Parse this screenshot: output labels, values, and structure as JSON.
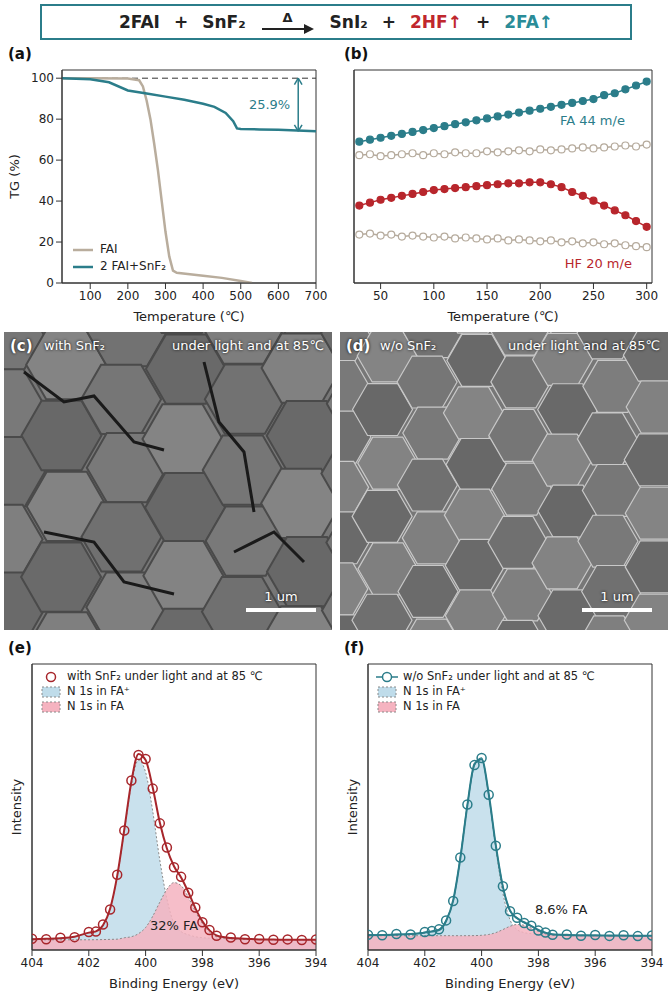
{
  "header": {
    "equation": [
      {
        "text": "2FAI"
      },
      {
        "text": "+"
      },
      {
        "text": "SnF₂"
      },
      {
        "text": "Δ",
        "arrow": true
      },
      {
        "text": "SnI₂"
      },
      {
        "text": "+"
      },
      {
        "text": "2HF↑",
        "color": "#c0272d"
      },
      {
        "text": "+"
      },
      {
        "text": "2FA↑",
        "color": "#2a8c98"
      }
    ]
  },
  "chart_data": [
    {
      "type": "line",
      "panel": "(a)",
      "xlabel": "Temperature (℃)",
      "ylabel": "TG (%)",
      "xlim": [
        25,
        700
      ],
      "xticks": [
        100,
        200,
        300,
        400,
        500,
        600,
        700
      ],
      "ylim": [
        0,
        104
      ],
      "yticks": [
        0,
        20,
        40,
        60,
        80,
        100
      ],
      "legend": "lower left",
      "series": [
        {
          "name": "FAI",
          "color": "#b9ad9d",
          "x": [
            25,
            100,
            200,
            230,
            240,
            250,
            260,
            270,
            280,
            290,
            300,
            310,
            320,
            330,
            400,
            450,
            500,
            530
          ],
          "values": [
            100,
            100,
            99.8,
            99,
            96,
            89,
            80,
            68,
            55,
            40,
            25,
            13,
            6,
            5,
            3.5,
            2.5,
            1,
            0
          ]
        },
        {
          "name": "2 FAI+SnF₂",
          "color": "#2b7d8a",
          "x": [
            25,
            100,
            150,
            200,
            250,
            300,
            350,
            400,
            430,
            460,
            480,
            490,
            500,
            550,
            600,
            650,
            700
          ],
          "values": [
            100,
            99.5,
            98,
            94,
            92.5,
            91,
            89.5,
            87.5,
            86,
            83,
            79,
            75.5,
            75.2,
            75,
            74.8,
            74.5,
            74.1
          ]
        }
      ],
      "reference_line": {
        "y": 100,
        "line_style": "dashed"
      },
      "annotations": [
        {
          "text": "25.9%",
          "y_from": 100,
          "y_to": 74.1,
          "color": "#2b7d8a"
        }
      ]
    },
    {
      "type": "line",
      "panel": "(b)",
      "xlabel": "Temperature (℃)",
      "xlim": [
        25,
        305
      ],
      "xticks": [
        50,
        100,
        150,
        200,
        250,
        300
      ],
      "ylim": [
        0,
        110
      ],
      "yticks": [],
      "tick_labels": "x",
      "x": [
        30,
        40,
        50,
        60,
        70,
        80,
        90,
        100,
        110,
        120,
        130,
        140,
        150,
        160,
        170,
        180,
        190,
        200,
        210,
        220,
        230,
        240,
        250,
        260,
        270,
        280,
        290,
        300
      ],
      "series": [
        {
          "name": "FA 44 m/e",
          "color": "#2b7d8a",
          "marker": "circle",
          "values": [
            73,
            74,
            75,
            76,
            77,
            78,
            79,
            80,
            81,
            82,
            83,
            84,
            85,
            86,
            87,
            88,
            89,
            90,
            91,
            92,
            93,
            94,
            95,
            97,
            98,
            100,
            102,
            104
          ]
        },
        {
          "color": "#b5aa9c",
          "marker": "open_circle",
          "values": [
            66,
            66.5,
            65.5,
            66,
            66.5,
            67,
            66,
            67,
            66.5,
            67.5,
            67,
            67,
            68,
            67.5,
            68,
            68.5,
            68,
            69,
            68.5,
            69,
            69.5,
            70,
            69.5,
            70,
            70.5,
            71,
            70.5,
            71.5
          ]
        },
        {
          "name": "HF 20 m/e",
          "color": "#b8262c",
          "marker": "circle",
          "values": [
            40,
            41.5,
            43,
            44,
            45,
            46,
            47,
            48,
            48.5,
            49,
            49.5,
            50,
            50.5,
            51,
            51.5,
            51.5,
            52,
            52,
            51,
            49.5,
            47,
            45,
            42.5,
            40,
            37.5,
            35,
            32,
            29
          ]
        },
        {
          "color": "#b5aa9c",
          "marker": "open_circle",
          "values": [
            25,
            25.5,
            24.5,
            25,
            24,
            24.5,
            24,
            23.5,
            24,
            23,
            23.5,
            23,
            22.5,
            23,
            22,
            22.5,
            22,
            21.5,
            22,
            21,
            21.5,
            20.5,
            21,
            20,
            20.5,
            19.5,
            19,
            18.5
          ]
        }
      ]
    },
    {
      "type": "line",
      "panel": "(e)",
      "xlabel": "Binding Energy (eV)",
      "ylabel": "Intensity",
      "xlim": [
        404,
        394
      ],
      "xticks": [
        404,
        402,
        400,
        398,
        396,
        394
      ],
      "ylim": [
        0,
        140
      ],
      "yticks": [],
      "tick_labels": "x",
      "legend": "upper left",
      "x": [
        404,
        403.5,
        403,
        402.5,
        402,
        401.75,
        401.5,
        401.25,
        401,
        400.75,
        400.5,
        400.25,
        400,
        399.75,
        399.5,
        399.25,
        399,
        398.75,
        398.5,
        398.25,
        398,
        397.75,
        397.5,
        397,
        396.5,
        396,
        395.5,
        395,
        394.5,
        394
      ],
      "series": [
        {
          "name": "with SnF₂ under light and at 85 ℃",
          "color": "#a7262b",
          "marker": "open_circle",
          "line_style": "none",
          "values": [
            5.5,
            5.3,
            6,
            6.3,
            8.8,
            9,
            12.5,
            19.8,
            36.8,
            58.5,
            83,
            95.5,
            93.5,
            79,
            62,
            50.2,
            40.5,
            35.8,
            28,
            20.8,
            13.6,
            9.8,
            7,
            6.1,
            5.3,
            5.4,
            5,
            5.2,
            4.9,
            5.1
          ]
        },
        {
          "color": "#a7262b",
          "line_style": "solid",
          "values": [
            5.3,
            5.5,
            5.8,
            6.5,
            8.5,
            9.1,
            12.1,
            20.2,
            36.3,
            59,
            82.5,
            96,
            93,
            79.5,
            62.4,
            49.7,
            41,
            35.5,
            28.5,
            20.5,
            14,
            9.6,
            7.1,
            5.9,
            5.5,
            5.2,
            5.1,
            5,
            5,
            5
          ]
        },
        {
          "name": "N 1s in FA⁺",
          "type": "area",
          "color": "#bfdcea",
          "values": [
            5.3,
            5.5,
            5.8,
            6.5,
            8.5,
            9,
            12,
            20,
            36,
            58,
            81,
            93,
            87,
            68,
            44,
            25,
            13,
            9,
            7.5,
            6.5,
            6,
            5.8,
            5.6,
            5.4,
            5.3,
            5.2,
            5.1,
            5,
            5,
            5
          ]
        },
        {
          "name": "N 1s in FA",
          "type": "area",
          "color": "#f5b3c0",
          "values": [
            5,
            5,
            5,
            5,
            5,
            5.05,
            5.1,
            5.2,
            5.3,
            6,
            6.5,
            8,
            11,
            16.5,
            23.4,
            29.7,
            33,
            31.5,
            26,
            19,
            13,
            8.8,
            6.5,
            5.5,
            5.2,
            5.1,
            5,
            5,
            5,
            5
          ]
        }
      ],
      "annotations": [
        {
          "text": "32% FA"
        }
      ]
    },
    {
      "type": "line",
      "panel": "(f)",
      "xlabel": "Binding Energy (eV)",
      "ylabel": "Intensity",
      "xlim": [
        404,
        394
      ],
      "xticks": [
        404,
        402,
        400,
        398,
        396,
        394
      ],
      "ylim": [
        0,
        140
      ],
      "yticks": [],
      "tick_labels": "x",
      "legend": "upper left",
      "x": [
        404,
        403.5,
        403,
        402.5,
        402,
        401.75,
        401.5,
        401.25,
        401,
        400.75,
        400.5,
        400.25,
        400,
        399.75,
        399.5,
        399.25,
        399,
        398.75,
        398.5,
        398.25,
        398,
        397.75,
        397.5,
        397,
        396.5,
        396,
        395.5,
        395,
        394.5,
        394
      ],
      "series": [
        {
          "name": "w/o SnF₂ under light and at 85 ℃",
          "color": "#2b7d8a",
          "marker": "open_circle",
          "line_style": "solid",
          "values": [
            7.5,
            7.2,
            7.8,
            7.6,
            8.8,
            9.3,
            10.1,
            14.5,
            24,
            45.3,
            71.2,
            90.5,
            94,
            76,
            51,
            31.2,
            19,
            15.8,
            13.2,
            11.9,
            9.5,
            8.6,
            7.5,
            7.6,
            7,
            7.3,
            6.9,
            7.2,
            6.8,
            7.1
          ]
        },
        {
          "color": "#2b7d8a",
          "line_style": "solid",
          "values": [
            7.2,
            7.3,
            7.5,
            7.8,
            8.5,
            9,
            9.7,
            14.2,
            24.4,
            44.8,
            70.9,
            91.1,
            93.4,
            76.5,
            51.3,
            30.8,
            19.4,
            15.5,
            13.6,
            11.7,
            9.8,
            8.4,
            7.7,
            7.35,
            7.2,
            7.1,
            7.1,
            7,
            7,
            7
          ]
        },
        {
          "name": "N 1s in FA⁺",
          "type": "area",
          "color": "#bfdcea",
          "values": [
            7.2,
            7.3,
            7.5,
            7.8,
            8.5,
            9,
            9.7,
            14.2,
            24.4,
            44.8,
            70.9,
            91,
            93.2,
            75.9,
            49.8,
            27.8,
            14.8,
            10,
            8.5,
            8,
            7.7,
            7.5,
            7.4,
            7.3,
            7.2,
            7.1,
            7.1,
            7,
            7,
            7
          ]
        },
        {
          "name": "N 1s in FA",
          "type": "area",
          "color": "#f5b3c0",
          "values": [
            7,
            7,
            7,
            7,
            7,
            7,
            7,
            7,
            7,
            7,
            7,
            7.05,
            7.2,
            7.6,
            8.5,
            10,
            11.6,
            12.5,
            12.1,
            10.7,
            9.1,
            7.9,
            7.3,
            7.05,
            7,
            7,
            7,
            7,
            7,
            7
          ]
        }
      ],
      "annotations": [
        {
          "text": "8.6% FA"
        }
      ]
    }
  ],
  "images": [
    {
      "panel": "(c)",
      "texts": [
        "with SnF₂",
        "under light and at 85℃"
      ],
      "scale_bar": "1 um"
    },
    {
      "panel": "(d)",
      "texts": [
        "w/o SnF₂",
        "under light and at 85℃"
      ],
      "scale_bar": "1 um"
    }
  ]
}
